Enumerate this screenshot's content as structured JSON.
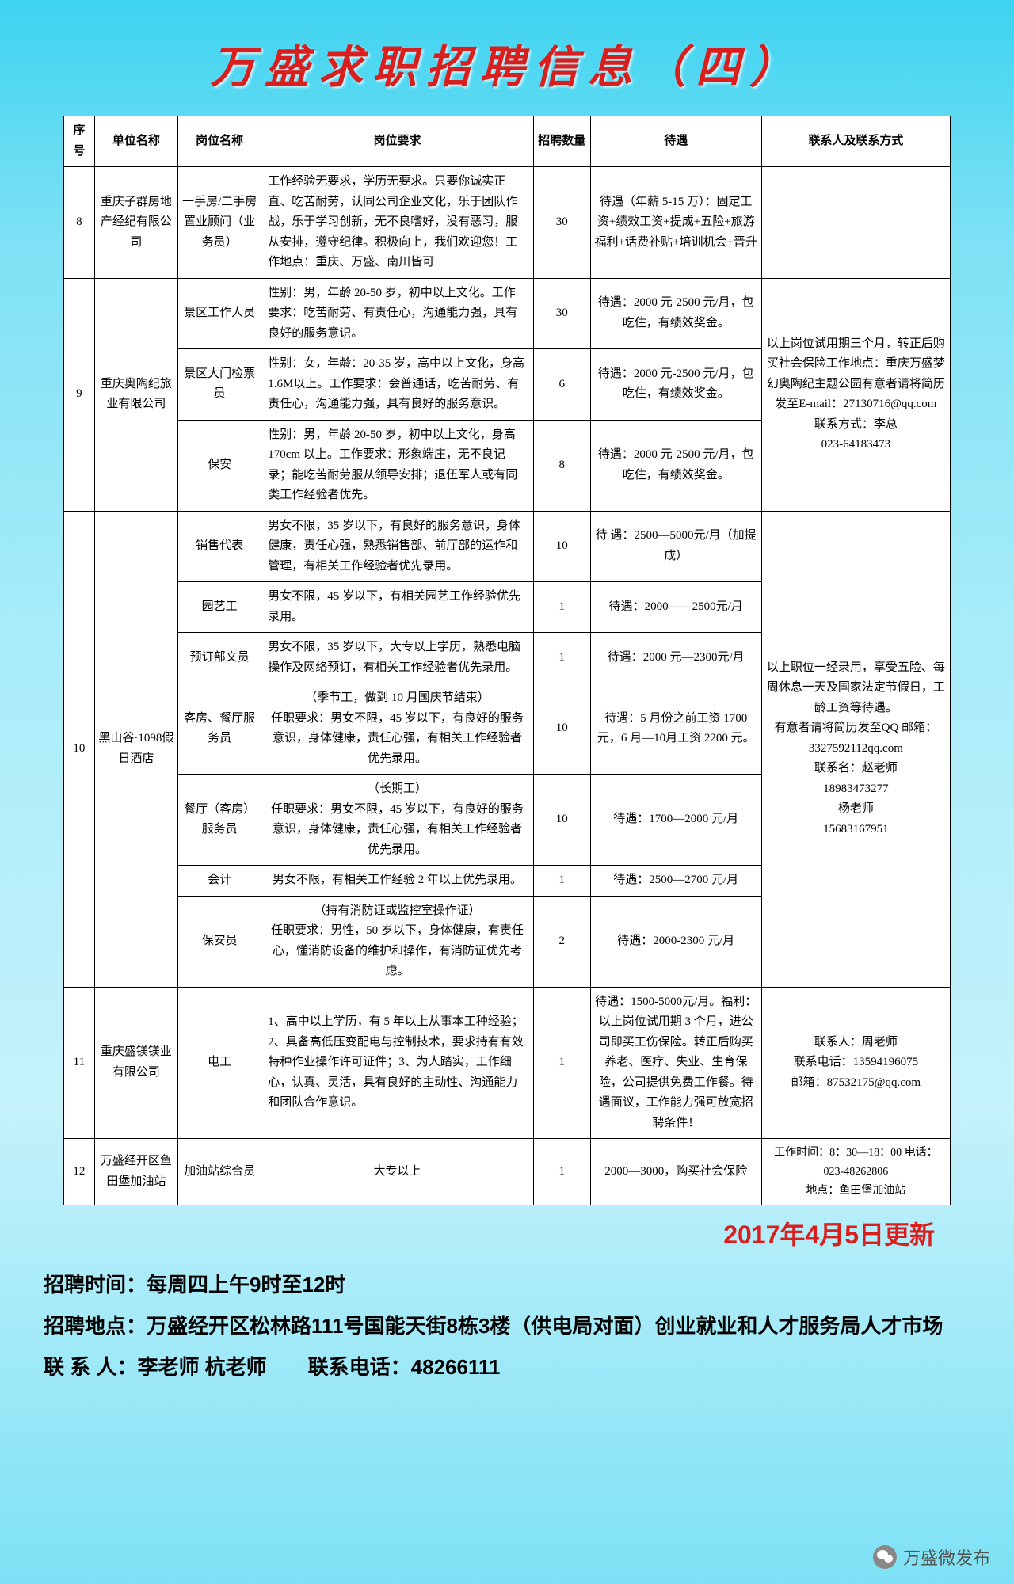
{
  "title": "万盛求职招聘信息（四）",
  "headers": {
    "seq": "序号",
    "company": "单位名称",
    "position": "岗位名称",
    "requirement": "岗位要求",
    "number": "招聘数量",
    "salary": "待遇",
    "contact": "联系人及联系方式"
  },
  "rows": [
    {
      "seq": "8",
      "company": "重庆子群房地产经纪有限公司",
      "position": "一手房/二手房 置业顾问（业务员）",
      "requirement": "工作经验无要求，学历无要求。只要你诚实正直、吃苦耐劳，认同公司企业文化，乐于团队作战，乐于学习创新，无不良嗜好，没有恶习，服从安排，遵守纪律。积极向上，我们欢迎您！工作地点：重庆、万盛、南川皆可",
      "number": "30",
      "salary": "待遇（年薪 5-15 万）：固定工资+绩效工资+提成+五险+旅游福利+话费补贴+培训机会+晋升",
      "contact": ""
    }
  ],
  "company9": {
    "seq": "9",
    "name": "重庆奥陶纪旅业有限公司",
    "contact": "以上岗位试用期三个月，转正后购买社会保险工作地点：重庆万盛梦幻奥陶纪主题公园有意者请将简历发至E-mail：27130716@qq.com\n联系方式：李总\n023-64183473",
    "jobs": [
      {
        "position": "景区工作人员",
        "requirement": "性别：男，年龄 20-50 岁，初中以上文化。工作要求：吃苦耐劳、有责任心，沟通能力强，具有良好的服务意识。",
        "number": "30",
        "salary": "待遇：2000 元-2500 元/月，包吃住，有绩效奖金。"
      },
      {
        "position": "景区大门检票员",
        "requirement": "性别：女，年龄：20-35 岁，高中以上文化，身高1.6M以上。工作要求：会普通话，吃苦耐劳、有责任心，沟通能力强，具有良好的服务意识。",
        "number": "6",
        "salary": "待遇：2000 元-2500 元/月，包吃住，有绩效奖金。"
      },
      {
        "position": "保安",
        "requirement": "性别：男，年龄 20-50 岁，初中以上文化，身高 170cm 以上。工作要求：形象端庄，无不良记录；能吃苦耐劳服从领导安排；退伍军人或有同类工作经验者优先。",
        "number": "8",
        "salary": "待遇：2000 元-2500 元/月，包吃住，有绩效奖金。"
      }
    ]
  },
  "company10": {
    "seq": "10",
    "name": "黑山谷·1098假日酒店",
    "contact": "以上职位一经录用，享受五险、每周休息一天及国家法定节假日，工龄工资等待遇。\n有意者请将简历发至QQ 邮箱：3327592112qq.com\n联系名：赵老师\n18983473277\n杨老师\n15683167951",
    "jobs": [
      {
        "position": "销售代表",
        "requirement": "男女不限，35 岁以下，有良好的服务意识，身体健康，责任心强，熟悉销售部、前厅部的运作和管理，有相关工作经验者优先录用。",
        "number": "10",
        "salary": "待 遇：2500—5000元/月（加提成）"
      },
      {
        "position": "园艺工",
        "requirement": "男女不限，45 岁以下，有相关园艺工作经验优先录用。",
        "number": "1",
        "salary": "待遇：2000——2500元/月"
      },
      {
        "position": "预订部文员",
        "requirement": "男女不限，35 岁以下，大专以上学历，熟悉电脑操作及网络预订，有相关工作经验者优先录用。",
        "number": "1",
        "salary": "待遇：2000 元—2300元/月"
      },
      {
        "position": "客房、餐厅服务员",
        "requirement": "（季节工，做到 10 月国庆节结束）\n任职要求：男女不限，45 岁以下，有良好的服务意识，身体健康，责任心强，有相关工作经验者优先录用。",
        "number": "10",
        "salary": "待遇：5 月份之前工资 1700 元，6 月—10月工资 2200 元。"
      },
      {
        "position": "餐厅（客房）服务员",
        "requirement": "（长期工）\n任职要求：男女不限，45 岁以下，有良好的服务意识，身体健康，责任心强，有相关工作经验者优先录用。",
        "number": "10",
        "salary": "待遇：1700—2000 元/月"
      },
      {
        "position": "会计",
        "requirement": "男女不限，有相关工作经验 2 年以上优先录用。",
        "number": "1",
        "salary": "待遇：2500—2700 元/月"
      },
      {
        "position": "保安员",
        "requirement": "（持有消防证或监控室操作证）\n任职要求：男性，50 岁以下，身体健康，有责任心，懂消防设备的维护和操作，有消防证优先考虑。",
        "number": "2",
        "salary": "待遇：2000-2300 元/月"
      }
    ]
  },
  "company11": {
    "seq": "11",
    "name": "重庆盛镁镁业有限公司",
    "position": "电工",
    "requirement": "1、高中以上学历，有 5 年以上从事本工种经验；2、具备高低压变配电与控制技术，要求持有有效特种作业操作许可证件；3、为人踏实，工作细心，认真、灵活，具有良好的主动性、沟通能力和团队合作意识。",
    "number": "1",
    "salary": "待遇：1500-5000元/月。福利：以上岗位试用期 3 个月，进公司即买工伤保险。转正后购买养老、医疗、失业、生育保险，公司提供免费工作餐。待遇面议，工作能力强可放宽招聘条件！",
    "contact": "联系人：周老师\n联系电话：13594196075\n邮箱：87532175@qq.com"
  },
  "company12": {
    "seq": "12",
    "name": "万盛经开区鱼田堡加油站",
    "position": "加油站综合员",
    "requirement": "大专以上",
    "number": "1",
    "salary": "2000—3000，购买社会保险",
    "contact": "工作时间：8：30—18：00 电话：023-48262806\n地点：鱼田堡加油站"
  },
  "update_date": "2017年4月5日更新",
  "footer": {
    "time": "招聘时间：每周四上午9时至12时",
    "address": "招聘地点：万盛经开区松林路111号国能天街8栋3楼（供电局对面）创业就业和人才服务局人才市场",
    "contact": "联 系 人：李老师 杭老师　　联系电话：48266111"
  },
  "watermark": "万盛微发布"
}
